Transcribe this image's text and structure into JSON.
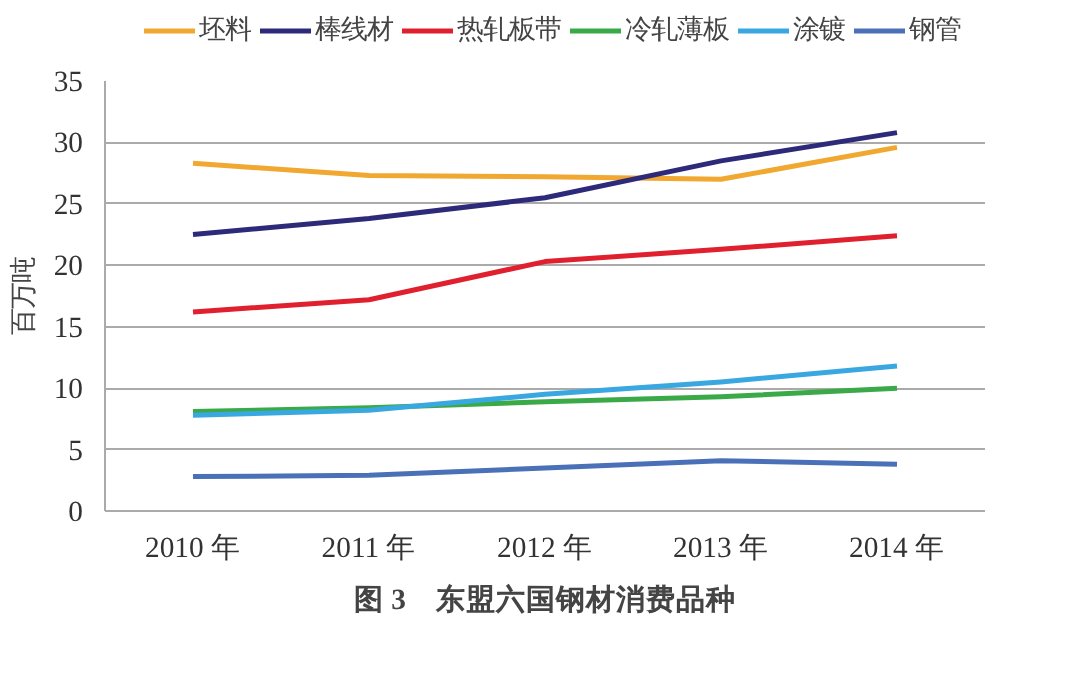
{
  "chart_data": {
    "type": "line",
    "title": "图 3　东盟六国钢材消费品种",
    "ylabel": "百万吨",
    "categories": [
      "2010 年",
      "2011 年",
      "2012 年",
      "2013 年",
      "2014 年"
    ],
    "series": [
      {
        "name": "坯料",
        "color": "#f0a830",
        "values": [
          28.3,
          27.3,
          27.2,
          27.0,
          29.6
        ]
      },
      {
        "name": "棒线材",
        "color": "#2e2a7a",
        "values": [
          22.5,
          23.8,
          25.5,
          28.5,
          30.8
        ]
      },
      {
        "name": "热轧板带",
        "color": "#e0202e",
        "values": [
          16.2,
          17.2,
          20.3,
          21.3,
          22.4
        ]
      },
      {
        "name": "冷轧薄板",
        "color": "#3aaa48",
        "values": [
          8.1,
          8.4,
          8.9,
          9.3,
          10.0
        ]
      },
      {
        "name": "涂镀",
        "color": "#3aa8e0",
        "values": [
          7.8,
          8.2,
          9.5,
          10.5,
          11.8
        ]
      },
      {
        "name": "钢管",
        "color": "#4a70b8",
        "values": [
          2.8,
          2.9,
          3.5,
          4.1,
          3.8
        ]
      }
    ],
    "ylim": [
      0,
      35
    ],
    "yticks": [
      0,
      5,
      10,
      15,
      20,
      25,
      30,
      35
    ],
    "grid": "y",
    "legend": "top",
    "marker": "none",
    "line_style": "solid"
  }
}
